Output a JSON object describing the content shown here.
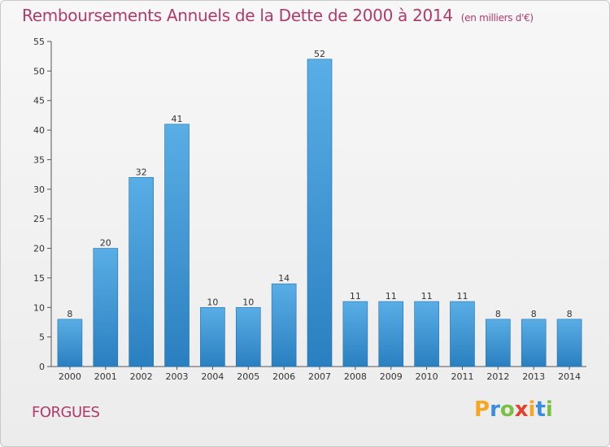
{
  "chart_data": {
    "type": "bar",
    "title": "Remboursements Annuels de la Dette de 2000 à 2014",
    "unit": "(en milliers d'€)",
    "categories": [
      "2000",
      "2001",
      "2002",
      "2003",
      "2004",
      "2005",
      "2006",
      "2007",
      "2008",
      "2009",
      "2010",
      "2011",
      "2012",
      "2013",
      "2014"
    ],
    "values": [
      8,
      20,
      32,
      41,
      10,
      10,
      14,
      52,
      11,
      11,
      11,
      11,
      8,
      8,
      8
    ],
    "data_labels": [
      "8",
      "20",
      "32",
      "41",
      "10",
      "10",
      "14",
      "52",
      "11",
      "11",
      "11",
      "11",
      "8",
      "8",
      "8"
    ],
    "ylim": [
      0,
      55
    ],
    "yticks": [
      0,
      5,
      10,
      15,
      20,
      25,
      30,
      35,
      40,
      45,
      50,
      55
    ],
    "grid": false,
    "xlabel": "",
    "ylabel": "",
    "bar_color_top": "#5aaee6",
    "bar_color_bottom": "#2a7fc0"
  },
  "footer": {
    "town": "FORGUES"
  },
  "logo": {
    "letters": [
      "P",
      "r",
      "o",
      "x",
      "i",
      "t",
      "i"
    ],
    "colors": [
      "#f5a623",
      "#3a8dde",
      "#7ac143",
      "#e2412e",
      "#f5a623",
      "#3a8dde",
      "#7ac143"
    ]
  }
}
